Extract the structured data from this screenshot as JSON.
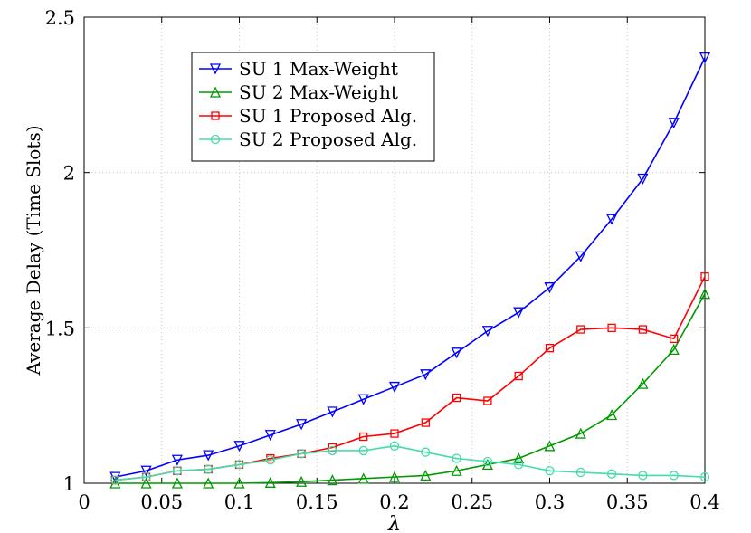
{
  "chart_data": {
    "type": "line",
    "title": "",
    "xlabel": "λ",
    "ylabel": "Average Delay (Time Slots)",
    "xlim": [
      0,
      0.4
    ],
    "ylim": [
      1,
      2.5
    ],
    "grid": true,
    "legend_position": "top-left",
    "x_ticks": [
      0,
      0.05,
      0.1,
      0.15,
      0.2,
      0.25,
      0.3,
      0.35,
      0.4
    ],
    "x_tick_labels": [
      "0",
      "0.05",
      "0.1",
      "0.15",
      "0.2",
      "0.25",
      "0.3",
      "0.35",
      "0.4"
    ],
    "y_ticks": [
      1,
      1.5,
      2,
      2.5
    ],
    "y_tick_labels": [
      "1",
      "1.5",
      "2",
      "2.5"
    ],
    "x": [
      0.02,
      0.04,
      0.06,
      0.08,
      0.1,
      0.12,
      0.14,
      0.16,
      0.18,
      0.2,
      0.22,
      0.24,
      0.26,
      0.28,
      0.3,
      0.32,
      0.34,
      0.36,
      0.38,
      0.4
    ],
    "series": [
      {
        "name": "SU 1 Max-Weight",
        "color": "#0000ff",
        "marker": "triangle-down",
        "values": [
          1.02,
          1.04,
          1.075,
          1.09,
          1.12,
          1.155,
          1.19,
          1.23,
          1.27,
          1.31,
          1.35,
          1.42,
          1.49,
          1.55,
          1.63,
          1.73,
          1.85,
          1.98,
          2.16,
          2.37
        ]
      },
      {
        "name": "SU 2 Max-Weight",
        "color": "#009900",
        "marker": "triangle-up",
        "values": [
          1.0,
          1.0,
          1.0,
          1.0,
          1.0,
          1.002,
          1.005,
          1.01,
          1.015,
          1.02,
          1.025,
          1.04,
          1.06,
          1.08,
          1.12,
          1.16,
          1.22,
          1.32,
          1.43,
          1.61
        ]
      },
      {
        "name": "SU 1 Proposed Alg.",
        "color": "#ff0000",
        "marker": "square",
        "values": [
          1.01,
          1.02,
          1.04,
          1.045,
          1.06,
          1.08,
          1.095,
          1.115,
          1.15,
          1.16,
          1.195,
          1.275,
          1.265,
          1.345,
          1.435,
          1.495,
          1.5,
          1.495,
          1.465,
          1.665
        ]
      },
      {
        "name": "SU 2 Proposed Alg.",
        "color": "#44ddaa",
        "marker": "circle",
        "values": [
          1.01,
          1.02,
          1.04,
          1.045,
          1.06,
          1.075,
          1.095,
          1.105,
          1.105,
          1.12,
          1.1,
          1.08,
          1.07,
          1.06,
          1.04,
          1.035,
          1.03,
          1.025,
          1.025,
          1.02
        ]
      }
    ]
  }
}
